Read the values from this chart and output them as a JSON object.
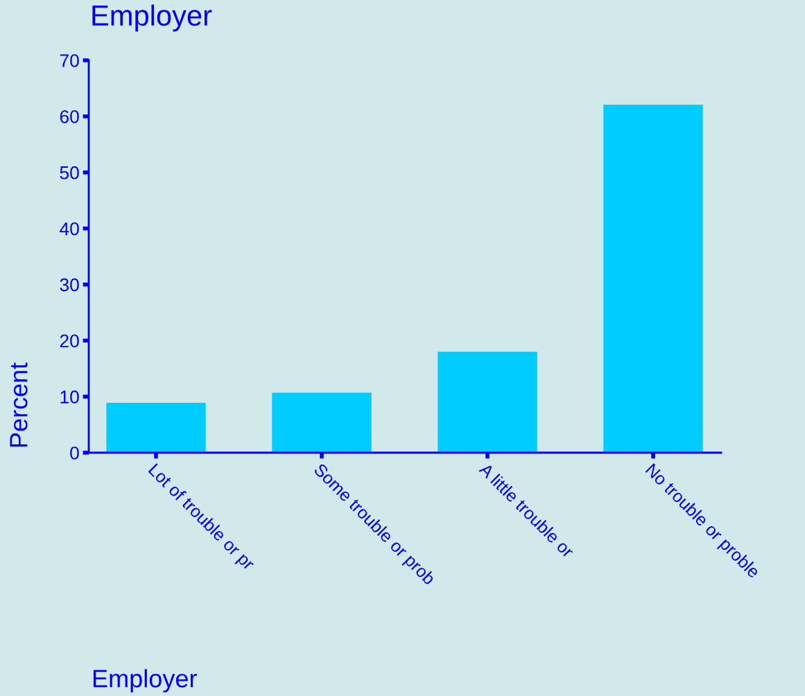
{
  "chart_data": {
    "type": "bar",
    "title": "Employer",
    "xlabel": "Employer",
    "ylabel": "Percent",
    "categories": [
      "Lot of trouble or pr",
      "Some trouble or prob",
      "A little trouble or",
      "No trouble or proble"
    ],
    "values": [
      8.9,
      10.7,
      18.0,
      62.1
    ],
    "color": "#00ccff",
    "ylim": [
      0,
      70
    ],
    "yticks": [
      0,
      10,
      20,
      30,
      40,
      50,
      60,
      70
    ],
    "grid": false,
    "legend": false
  }
}
